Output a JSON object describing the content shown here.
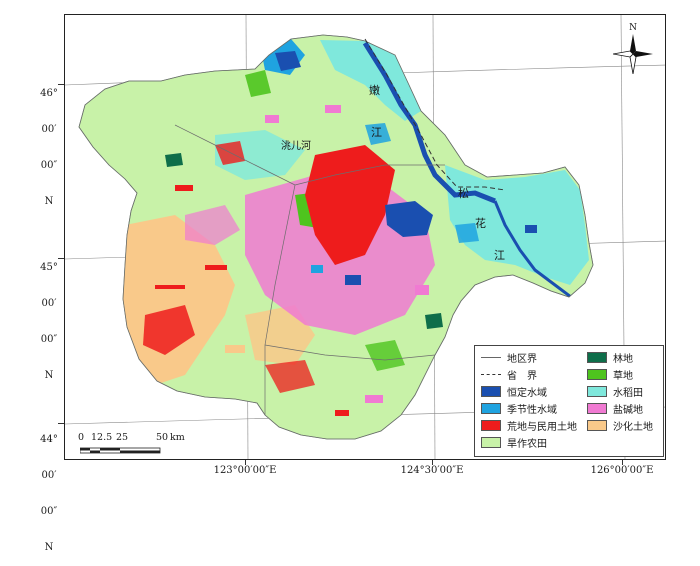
{
  "map": {
    "latitudes": [
      {
        "deg": "46°",
        "min": "00′",
        "sec": "00″",
        "hem": "N"
      },
      {
        "deg": "45°",
        "min": "00′",
        "sec": "00″",
        "hem": "N"
      },
      {
        "deg": "44°",
        "min": "00′",
        "sec": "00″",
        "hem": "N"
      }
    ],
    "longitudes": [
      "123°00′00″E",
      "124°30′00″E",
      "126°00′00″E"
    ],
    "north_label": "N",
    "place_labels": {
      "river_nen_1": "嫩",
      "river_nen_2": "江",
      "river_song_1": "松",
      "river_song_2": "花",
      "river_song_3": "江",
      "river_small": "洮儿河"
    },
    "scale": {
      "ticks": [
        "0",
        "12.5",
        "25",
        "50"
      ],
      "unit": "km"
    },
    "colors": {
      "dryland": "#c8f2a8",
      "paddy": "#7fe8dc",
      "permanent_water": "#1a4fb0",
      "seasonal_water": "#1fa3e0",
      "wasteland": "#ee1c1c",
      "grassland": "#4ec41e",
      "forest": "#0e6e4a",
      "saline": "#f07ad2",
      "sandy": "#f9c98a"
    }
  },
  "legend": {
    "left": [
      {
        "label": "地区界",
        "kind": "line"
      },
      {
        "label": "省　界",
        "kind": "dashed"
      },
      {
        "label": "恒定水域",
        "kind": "swatch",
        "color": "#1a4fb0"
      },
      {
        "label": "季节性水域",
        "kind": "swatch",
        "color": "#1fa3e0"
      },
      {
        "label": "荒地与民用土地",
        "kind": "swatch",
        "color": "#ee1c1c"
      },
      {
        "label": "旱作农田",
        "kind": "swatch",
        "color": "#c8f2a8"
      }
    ],
    "right": [
      {
        "label": "林地",
        "kind": "swatch",
        "color": "#0e6e4a"
      },
      {
        "label": "草地",
        "kind": "swatch",
        "color": "#4ec41e"
      },
      {
        "label": "水稻田",
        "kind": "swatch",
        "color": "#7fe8dc"
      },
      {
        "label": "盐碱地",
        "kind": "swatch",
        "color": "#f07ad2"
      },
      {
        "label": "沙化土地",
        "kind": "swatch",
        "color": "#f9c98a"
      }
    ]
  }
}
